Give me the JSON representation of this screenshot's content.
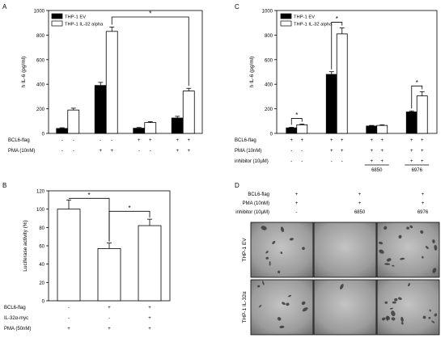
{
  "chart_data": [
    {
      "panel": "A",
      "type": "bar",
      "ylabel": "h IL-6 (pg/ml)",
      "ylim": [
        0,
        1000
      ],
      "yticks": [
        0,
        200,
        400,
        600,
        800,
        1000
      ],
      "series": [
        {
          "name": "THP-1 EV",
          "color": "#000000",
          "values": [
            40,
            390,
            42,
            125
          ],
          "errors": [
            6,
            25,
            6,
            14
          ]
        },
        {
          "name": "THP-1 IL-32 alpha",
          "color": "#ffffff",
          "values": [
            190,
            830,
            88,
            345
          ],
          "errors": [
            15,
            35,
            8,
            22
          ]
        }
      ],
      "conditions": [
        {
          "label": "BCL6-flag",
          "values": [
            "-",
            "-",
            "-",
            "-",
            "+",
            "+",
            "+",
            "+"
          ]
        },
        {
          "label": "PMA (10nM)",
          "values": [
            "-",
            "-",
            "+",
            "+",
            "-",
            "-",
            "+",
            "+"
          ]
        }
      ],
      "significance": [
        {
          "text": "*",
          "from": [
            1,
            1
          ],
          "to": [
            3,
            1
          ]
        }
      ],
      "grid": false,
      "legend": "top-left"
    },
    {
      "panel": "C",
      "type": "bar",
      "ylabel": "h IL-6 (pg/ml)",
      "ylim": [
        0,
        1000
      ],
      "yticks": [
        0,
        200,
        400,
        600,
        800,
        1000
      ],
      "series": [
        {
          "name": "THP-1 EV",
          "color": "#000000",
          "values": [
            45,
            480,
            60,
            175
          ],
          "errors": [
            5,
            22,
            5,
            8
          ]
        },
        {
          "name": "THP-1 IL-32 alpha",
          "color": "#ffffff",
          "values": [
            70,
            810,
            65,
            305
          ],
          "errors": [
            6,
            48,
            5,
            35
          ]
        }
      ],
      "conditions": [
        {
          "label": "BCL6-flag",
          "values": [
            "+",
            "+",
            "+",
            "+",
            "+",
            "+",
            "+",
            "+"
          ]
        },
        {
          "label": "PMA (10nM)",
          "values": [
            "-",
            "-",
            "+",
            "+",
            "+",
            "+",
            "+",
            "+"
          ]
        },
        {
          "label": "inhibitor (10μM)",
          "values": [
            "-",
            "-",
            "-",
            "-",
            "+",
            "+",
            "+",
            "+"
          ]
        }
      ],
      "group_labels": [
        "6850",
        "6976"
      ],
      "significance": [
        {
          "text": "*",
          "from": [
            0,
            0
          ],
          "to": [
            0,
            1
          ]
        },
        {
          "text": "*",
          "from": [
            1,
            0
          ],
          "to": [
            1,
            1
          ]
        },
        {
          "text": "*",
          "from": [
            3,
            0
          ],
          "to": [
            3,
            1
          ]
        }
      ],
      "grid": false,
      "legend": "top-left"
    },
    {
      "panel": "B",
      "type": "bar",
      "ylabel": "Luciferase activity (%)",
      "ylim": [
        0,
        120
      ],
      "yticks": [
        0,
        20,
        40,
        60,
        80,
        100,
        120
      ],
      "values": [
        100,
        57,
        82
      ],
      "errors": [
        10,
        6,
        7
      ],
      "conditions": [
        {
          "label": "BCL6-flag",
          "values": [
            "-",
            "+",
            "+"
          ]
        },
        {
          "label": "IL-32α-myc",
          "values": [
            "-",
            "-",
            "+"
          ]
        },
        {
          "label": "PMA (50nM)",
          "values": [
            "+",
            "+",
            "+"
          ]
        }
      ],
      "significance": [
        {
          "text": "*",
          "from": 0,
          "to": 1
        },
        {
          "text": "*",
          "from": 1,
          "to": 2
        }
      ],
      "grid": false
    }
  ],
  "panel_d": {
    "letter": "D",
    "conditions": [
      {
        "label": "BCL6-flag",
        "values": [
          "+",
          "+",
          "+"
        ]
      },
      {
        "label": "PMA (10nM)",
        "values": [
          "+",
          "+",
          "+"
        ]
      },
      {
        "label": "inhibitor (10μM)",
        "values": [
          "-",
          "6850",
          "6976"
        ]
      }
    ],
    "row_labels": [
      "THP-1 EV",
      "THP-1 IL-32α"
    ]
  }
}
